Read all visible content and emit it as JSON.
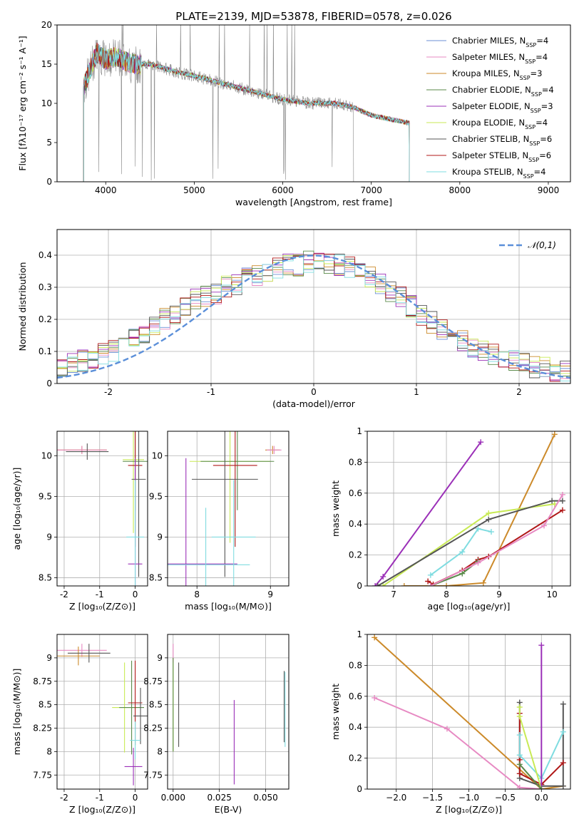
{
  "title": "PLATE=2139, MJD=53878, FIBERID=0578, z=0.026",
  "colors": {
    "Chabrier MILES": "#6b8fd6",
    "Salpeter MILES": "#e78ac3",
    "Kroupa MILES": "#cc8a2a",
    "Chabrier ELODIE": "#5a8a4a",
    "Salpeter ELODIE": "#9b30b8",
    "Kroupa ELODIE": "#c8ea55",
    "Chabrier STELIB": "#555555",
    "Salpeter STELIB": "#b01818",
    "Kroupa STELIB": "#7fdce0",
    "normal_curve": "#5b8fd9"
  },
  "legend": [
    {
      "name": "Chabrier MILES",
      "n": "4"
    },
    {
      "name": "Salpeter MILES",
      "n": "4"
    },
    {
      "name": "Kroupa MILES",
      "n": "3"
    },
    {
      "name": "Chabrier ELODIE",
      "n": "4"
    },
    {
      "name": "Salpeter ELODIE",
      "n": "3"
    },
    {
      "name": "Kroupa ELODIE",
      "n": "4"
    },
    {
      "name": "Chabrier STELIB",
      "n": "6"
    },
    {
      "name": "Salpeter STELIB",
      "n": "6"
    },
    {
      "name": "Kroupa STELIB",
      "n": "4"
    }
  ],
  "chart_data": [
    {
      "id": "spectrum",
      "type": "line",
      "xlabel": "wavelength [Angstrom, rest frame]",
      "ylabel": "Flux [fλ10⁻¹⁷ erg cm⁻² s⁻¹ A⁻¹]",
      "xlim": [
        3450,
        9250
      ],
      "ylim": [
        0,
        20
      ],
      "xticks": [
        4000,
        5000,
        6000,
        7000,
        8000,
        9000
      ],
      "yticks": [
        0,
        5,
        10,
        15,
        20
      ],
      "model_range": [
        3750,
        7430
      ],
      "data_range": [
        3750,
        6800
      ],
      "continuum": [
        [
          3750,
          12
        ],
        [
          3900,
          16.5
        ],
        [
          4000,
          15.5
        ],
        [
          4100,
          16
        ],
        [
          4300,
          15
        ],
        [
          4500,
          15
        ],
        [
          4800,
          14
        ],
        [
          5000,
          13.5
        ],
        [
          5500,
          12
        ],
        [
          6000,
          10.5
        ],
        [
          6300,
          10
        ],
        [
          6600,
          10
        ],
        [
          6800,
          9.5
        ],
        [
          7000,
          8.5
        ],
        [
          7200,
          8
        ],
        [
          7430,
          7.5
        ]
      ]
    },
    {
      "id": "residuals",
      "type": "histogram",
      "xlabel": "(data-model)/error",
      "ylabel": "Normed distribution",
      "xlim": [
        -2.5,
        2.5
      ],
      "ylim": [
        0,
        0.48
      ],
      "xticks": [
        -2,
        -1,
        0,
        1,
        2
      ],
      "yticks": [
        0.0,
        0.1,
        0.2,
        0.3,
        0.4
      ],
      "normal_label": "𝒩(0,1)",
      "bin_width": 0.1,
      "bin_start": -2.5,
      "profile": [
        0.04,
        0.06,
        0.07,
        0.08,
        0.09,
        0.1,
        0.12,
        0.14,
        0.16,
        0.18,
        0.2,
        0.22,
        0.24,
        0.26,
        0.27,
        0.28,
        0.3,
        0.31,
        0.33,
        0.34,
        0.35,
        0.36,
        0.37,
        0.37,
        0.38,
        0.38,
        0.37,
        0.37,
        0.36,
        0.35,
        0.33,
        0.31,
        0.29,
        0.27,
        0.24,
        0.21,
        0.19,
        0.17,
        0.15,
        0.13,
        0.11,
        0.1,
        0.09,
        0.08,
        0.07,
        0.06,
        0.05,
        0.05,
        0.04,
        0.04
      ]
    },
    {
      "id": "age-vs-Z",
      "type": "scatter",
      "xlabel": "Z [log₁₀(Z/Z⊙)]",
      "ylabel": "age  [log₁₀(age/yr)]",
      "xlim": [
        -2.2,
        0.35
      ],
      "ylim": [
        8.4,
        10.3
      ],
      "xticks": [
        -2,
        -1,
        0
      ],
      "yticks": [
        8.5,
        9.0,
        9.5,
        10.0
      ],
      "points": [
        {
          "series": "Kroupa MILES",
          "x": -1.5,
          "xerr": 0.7,
          "y": 10.07,
          "yerr": 0.05
        },
        {
          "series": "Salpeter MILES",
          "x": -1.5,
          "xerr": 0.7,
          "y": 10.07,
          "yerr": 0.05
        },
        {
          "series": "Chabrier STELIB",
          "x": -1.35,
          "xerr": 0.6,
          "y": 10.05,
          "yerr": 0.1
        },
        {
          "series": "Kroupa ELODIE",
          "x": -0.05,
          "xerr": 0.3,
          "y": 9.95,
          "yerr": 0.9
        },
        {
          "series": "Chabrier ELODIE",
          "x": 0.0,
          "xerr": 0.35,
          "y": 9.93,
          "yerr": 0.6
        },
        {
          "series": "Salpeter STELIB",
          "x": 0.0,
          "xerr": 0.2,
          "y": 9.88,
          "yerr": 1.0
        },
        {
          "series": "Chabrier STELIB",
          "x": 0.1,
          "xerr": 0.2,
          "y": 9.71,
          "yerr": 1.2
        },
        {
          "series": "Salpeter ELODIE",
          "x": 0.0,
          "xerr": 0.2,
          "y": 8.67,
          "yerr": 1.3
        },
        {
          "series": "Kroupa STELIB",
          "x": 0.0,
          "xerr": 0.25,
          "y": 9.0,
          "yerr": 0.7
        }
      ]
    },
    {
      "id": "age-vs-mass",
      "type": "scatter",
      "xlabel": "mass [log₁₀(M/M⊙)]",
      "ylabel": "",
      "xlim": [
        7.6,
        9.25
      ],
      "ylim": [
        8.4,
        10.3
      ],
      "xticks": [
        8,
        9
      ],
      "yticks": [
        8.5,
        9.0,
        9.5,
        10.0
      ],
      "points": [
        {
          "series": "Kroupa MILES",
          "x": 9.03,
          "xerr": 0.1,
          "y": 10.07,
          "yerr": 0.05
        },
        {
          "series": "Salpeter MILES",
          "x": 9.05,
          "xerr": 0.1,
          "y": 10.07,
          "yerr": 0.05
        },
        {
          "series": "Kroupa ELODIE",
          "x": 8.45,
          "xerr": 0.55,
          "y": 9.93,
          "yerr": 1.0
        },
        {
          "series": "Chabrier ELODIE",
          "x": 8.55,
          "xerr": 0.5,
          "y": 9.93,
          "yerr": 0.6
        },
        {
          "series": "Salpeter STELIB",
          "x": 8.52,
          "xerr": 0.3,
          "y": 9.88,
          "yerr": 1.0
        },
        {
          "series": "Chabrier STELIB",
          "x": 8.38,
          "xerr": 0.45,
          "y": 9.71,
          "yerr": 1.2
        },
        {
          "series": "Salpeter ELODIE",
          "x": 7.85,
          "xerr": 0.7,
          "y": 8.67,
          "yerr": 1.3
        },
        {
          "series": "Kroupa STELIB",
          "x": 8.12,
          "xerr": 0.6,
          "y": 8.66,
          "yerr": 0.7
        },
        {
          "series": "Kroupa STELIB",
          "x": 8.5,
          "xerr": 0.3,
          "y": 9.0,
          "yerr": 0.7
        }
      ]
    },
    {
      "id": "massweight-vs-age",
      "type": "line",
      "xlabel": "age  [log₁₀(age/yr)]",
      "ylabel": "mass weight",
      "xlim": [
        6.5,
        10.35
      ],
      "ylim": [
        0,
        1
      ],
      "xticks": [
        7,
        8,
        9,
        10
      ],
      "yticks": [
        0.0,
        0.2,
        0.4,
        0.6,
        0.8,
        1.0
      ],
      "series": [
        {
          "name": "Salpeter ELODIE",
          "x": [
            6.65,
            6.8,
            8.65
          ],
          "y": [
            0.0,
            0.06,
            0.93
          ]
        },
        {
          "name": "Kroupa MILES",
          "x": [
            7.2,
            8.0,
            8.7,
            10.05
          ],
          "y": [
            0.0,
            0.0,
            0.02,
            0.98
          ]
        },
        {
          "name": "Kroupa ELODIE",
          "x": [
            6.8,
            8.8,
            10.05
          ],
          "y": [
            0.0,
            0.47,
            0.53
          ]
        },
        {
          "name": "Chabrier STELIB",
          "x": [
            6.7,
            8.8,
            10.0,
            10.2
          ],
          "y": [
            0.0,
            0.43,
            0.55,
            0.55
          ]
        },
        {
          "name": "Kroupa STELIB",
          "x": [
            7.7,
            8.3,
            8.6,
            8.85
          ],
          "y": [
            0.07,
            0.22,
            0.37,
            0.35
          ]
        },
        {
          "name": "Salpeter STELIB",
          "x": [
            7.65,
            7.75,
            8.3,
            8.6,
            8.8,
            10.2
          ],
          "y": [
            0.03,
            0.01,
            0.1,
            0.17,
            0.19,
            0.49
          ]
        },
        {
          "name": "Chabrier ELODIE",
          "x": [
            7.7,
            8.3,
            8.6
          ],
          "y": [
            0.0,
            0.08,
            0.16
          ]
        },
        {
          "name": "Salpeter MILES",
          "x": [
            7.7,
            8.6,
            9.85,
            10.2
          ],
          "y": [
            0.0,
            0.15,
            0.39,
            0.59
          ]
        }
      ]
    },
    {
      "id": "mass-vs-Z",
      "type": "scatter",
      "xlabel": "Z [log₁₀(Z/Z⊙)]",
      "ylabel": "mass [log₁₀(M/M⊙)]",
      "xlim": [
        -2.2,
        0.35
      ],
      "ylim": [
        7.6,
        9.25
      ],
      "xticks": [
        -2,
        -1,
        0
      ],
      "yticks": [
        7.75,
        8.0,
        8.25,
        8.5,
        8.75,
        9.0
      ],
      "points": [
        {
          "series": "Salpeter MILES",
          "x": -1.5,
          "xerr": 0.7,
          "y": 9.08,
          "yerr": 0.07
        },
        {
          "series": "Kroupa MILES",
          "x": -1.6,
          "xerr": 0.6,
          "y": 9.02,
          "yerr": 0.1
        },
        {
          "series": "Chabrier STELIB",
          "x": -1.3,
          "xerr": 0.6,
          "y": 9.05,
          "yerr": 0.1
        },
        {
          "series": "Kroupa ELODIE",
          "x": -0.3,
          "xerr": 0.35,
          "y": 8.47,
          "yerr": 0.48
        },
        {
          "series": "Chabrier ELODIE",
          "x": -0.1,
          "xerr": 0.35,
          "y": 8.47,
          "yerr": 0.5
        },
        {
          "series": "Salpeter STELIB",
          "x": 0.0,
          "xerr": 0.2,
          "y": 8.52,
          "yerr": 0.45
        },
        {
          "series": "Chabrier STELIB",
          "x": 0.15,
          "xerr": 0.2,
          "y": 8.38,
          "yerr": 0.3
        },
        {
          "series": "Kroupa STELIB",
          "x": 0.0,
          "xerr": 0.15,
          "y": 8.12,
          "yerr": 0.2
        },
        {
          "series": "Salpeter ELODIE",
          "x": -0.05,
          "xerr": 0.25,
          "y": 7.84,
          "yerr": 0.2
        }
      ]
    },
    {
      "id": "mass-vs-EBV",
      "type": "scatter",
      "xlabel": "E(B-V)",
      "ylabel": "",
      "xlim": [
        -0.003,
        0.0625
      ],
      "ylim": [
        7.6,
        9.25
      ],
      "xticks": [
        0.0,
        0.025,
        0.05
      ],
      "xticklabels": [
        "0.000",
        "0.025",
        "0.050"
      ],
      "yticks": [
        7.75,
        8.0,
        8.25,
        8.5,
        8.75,
        9.0
      ],
      "points": [
        {
          "series": "Kroupa ELODIE",
          "x": 0.0,
          "y": 8.5,
          "yerr": 0.5
        },
        {
          "series": "Salpeter MILES",
          "x": 0.0,
          "y": 9.05,
          "yerr": 0.1
        },
        {
          "series": "Chabrier ELODIE",
          "x": 0.0,
          "y": 8.5,
          "yerr": 0.5
        },
        {
          "series": "Chabrier STELIB",
          "x": 0.003,
          "y": 8.5,
          "yerr": 0.45
        },
        {
          "series": "Salpeter ELODIE",
          "x": 0.033,
          "y": 8.1,
          "yerr": 0.45
        },
        {
          "series": "Chabrier STELIB",
          "x": 0.06,
          "y": 8.48,
          "yerr": 0.38
        },
        {
          "series": "Kroupa STELIB",
          "x": 0.0605,
          "y": 8.45,
          "yerr": 0.4
        }
      ]
    },
    {
      "id": "massweight-vs-Z",
      "type": "line",
      "xlabel": "Z [log₁₀(Z/Z⊙)]",
      "ylabel": "mass weight",
      "xlim": [
        -2.4,
        0.4
      ],
      "ylim": [
        0,
        1
      ],
      "xticks": [
        -2.0,
        -1.5,
        -1.0,
        -0.5,
        0.0
      ],
      "xticklabels": [
        "−2.0",
        "−1.5",
        "−1.0",
        "−0.5",
        "0.0"
      ],
      "yticks": [
        0.0,
        0.2,
        0.4,
        0.6,
        0.8,
        1.0
      ],
      "series": [
        {
          "name": "Kroupa MILES",
          "x": [
            -2.3,
            0.0,
            0.3
          ],
          "y": [
            0.98,
            0.0,
            0.02
          ]
        },
        {
          "name": "Salpeter MILES",
          "x": [
            -2.3,
            -1.3,
            -0.3,
            0.0
          ],
          "y": [
            0.59,
            0.39,
            0.01,
            0.0
          ]
        },
        {
          "name": "Chabrier STELIB",
          "x": [
            -0.3,
            -0.3,
            0.0,
            0.3,
            0.3
          ],
          "y": [
            0.56,
            0.07,
            0.02,
            0.02,
            0.55
          ]
        },
        {
          "name": "Salpeter STELIB",
          "x": [
            -0.3,
            -0.3,
            -0.3,
            0.0,
            0.3
          ],
          "y": [
            0.49,
            0.19,
            0.1,
            0.03,
            0.17
          ]
        },
        {
          "name": "Kroupa STELIB",
          "x": [
            -0.3,
            -0.3,
            0.0,
            0.3
          ],
          "y": [
            0.35,
            0.22,
            0.07,
            0.37
          ]
        },
        {
          "name": "Kroupa ELODIE",
          "x": [
            -0.3,
            -0.3,
            0.0
          ],
          "y": [
            0.53,
            0.47,
            0.0
          ]
        },
        {
          "name": "Salpeter ELODIE",
          "x": [
            0.0,
            0.0
          ],
          "y": [
            0.0,
            0.93
          ]
        },
        {
          "name": "Chabrier ELODIE",
          "x": [
            -0.3,
            0.0
          ],
          "y": [
            0.16,
            0.0
          ]
        }
      ]
    }
  ]
}
